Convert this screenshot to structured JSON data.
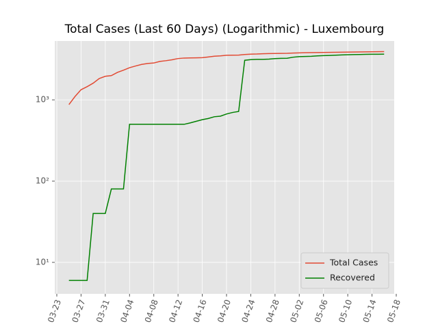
{
  "chart_data": {
    "type": "line",
    "title": "Total Cases (Last 60 Days) (Logarithmic) - Luxembourg",
    "x": [
      "03-25",
      "03-26",
      "03-27",
      "03-28",
      "03-29",
      "03-30",
      "03-31",
      "04-01",
      "04-02",
      "04-03",
      "04-04",
      "04-05",
      "04-06",
      "04-07",
      "04-08",
      "04-09",
      "04-10",
      "04-11",
      "04-12",
      "04-13",
      "04-14",
      "04-15",
      "04-16",
      "04-17",
      "04-18",
      "04-19",
      "04-20",
      "04-21",
      "04-22",
      "04-23",
      "04-24",
      "04-25",
      "04-26",
      "04-27",
      "04-28",
      "04-29",
      "04-30",
      "05-01",
      "05-02",
      "05-03",
      "05-04",
      "05-05",
      "05-06",
      "05-07",
      "05-08",
      "05-09",
      "05-10",
      "05-11",
      "05-12",
      "05-13",
      "05-14",
      "05-15",
      "05-16"
    ],
    "series": [
      {
        "name": "Total Cases",
        "color": "#E24A33",
        "values": [
          875,
          1099,
          1333,
          1453,
          1605,
          1831,
          1950,
          1988,
          2178,
          2319,
          2487,
          2612,
          2729,
          2804,
          2843,
          2970,
          3034,
          3115,
          3223,
          3270,
          3281,
          3292,
          3307,
          3373,
          3444,
          3480,
          3537,
          3550,
          3558,
          3618,
          3654,
          3665,
          3695,
          3711,
          3723,
          3729,
          3741,
          3769,
          3784,
          3802,
          3812,
          3824,
          3828,
          3840,
          3851,
          3859,
          3871,
          3877,
          3886,
          3894,
          3904,
          3915,
          3923
        ]
      },
      {
        "name": "Recovered",
        "color": "#008000",
        "values": [
          6,
          6,
          6,
          6,
          40,
          40,
          40,
          80,
          80,
          80,
          500,
          500,
          500,
          500,
          500,
          500,
          500,
          500,
          500,
          500,
          520,
          545,
          570,
          590,
          620,
          630,
          670,
          700,
          720,
          3070,
          3130,
          3150,
          3150,
          3170,
          3220,
          3240,
          3250,
          3350,
          3400,
          3420,
          3440,
          3480,
          3500,
          3520,
          3550,
          3570,
          3590,
          3610,
          3620,
          3630,
          3640,
          3645,
          3650
        ]
      }
    ],
    "xlim": [
      "03-23",
      "05-18"
    ],
    "xticks": [
      "03-23",
      "03-27",
      "03-31",
      "04-04",
      "04-08",
      "04-12",
      "04-16",
      "04-20",
      "04-24",
      "04-28",
      "05-02",
      "05-06",
      "05-10",
      "05-14",
      "05-18"
    ],
    "ylim": [
      4.1,
      5300
    ],
    "log_y": true,
    "yticks": [
      {
        "value": 10,
        "label": "10¹"
      },
      {
        "value": 100,
        "label": "10²"
      },
      {
        "value": 1000,
        "label": "10³"
      }
    ],
    "grid": true,
    "legend": "lower right"
  }
}
